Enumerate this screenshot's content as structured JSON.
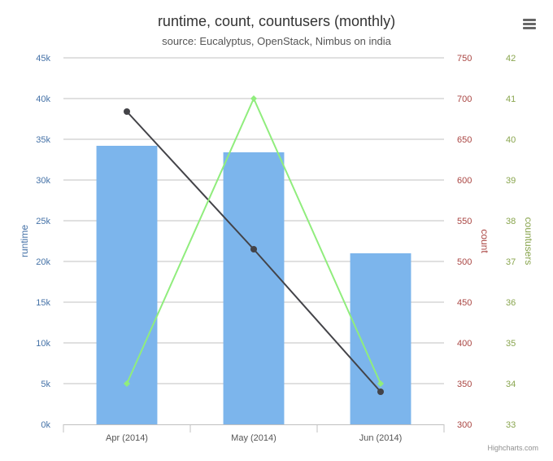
{
  "colors": {
    "runtime": "#7cb5ec",
    "count": "#434348",
    "countusers": "#90ed7d",
    "runtime_axis": "#4572a7",
    "count_axis": "#aa4643",
    "countusers_axis": "#89a54e",
    "grid": "#c0c0c0"
  },
  "menu_icon": "hamburger-menu-icon",
  "credits": "Highcharts.com",
  "chart_data": {
    "type": "bar",
    "title": "runtime, count, countusers (monthly)",
    "subtitle": "source: Eucalyptus, OpenStack, Nimbus on india",
    "categories": [
      "Apr (2014)",
      "May (2014)",
      "Jun (2014)"
    ],
    "grid": true,
    "legend": "none",
    "axes": {
      "runtime": {
        "title": "runtime",
        "min": 0,
        "max": 45000,
        "ticks": [
          "0k",
          "5k",
          "10k",
          "15k",
          "20k",
          "25k",
          "30k",
          "35k",
          "40k",
          "45k"
        ]
      },
      "count": {
        "title": "count",
        "min": 300,
        "max": 750,
        "ticks": [
          "300",
          "350",
          "400",
          "450",
          "500",
          "550",
          "600",
          "650",
          "700",
          "750"
        ]
      },
      "countusers": {
        "title": "countusers",
        "min": 33,
        "max": 42,
        "ticks": [
          "33",
          "34",
          "35",
          "36",
          "37",
          "38",
          "39",
          "40",
          "41",
          "42"
        ]
      }
    },
    "series": [
      {
        "name": "runtime",
        "type": "bar",
        "axis": "runtime",
        "values": [
          34200,
          33400,
          21000
        ]
      },
      {
        "name": "count",
        "type": "line",
        "axis": "count",
        "values": [
          684,
          515,
          340
        ]
      },
      {
        "name": "countusers",
        "type": "line",
        "axis": "countusers",
        "values": [
          34,
          41,
          34
        ]
      }
    ]
  }
}
